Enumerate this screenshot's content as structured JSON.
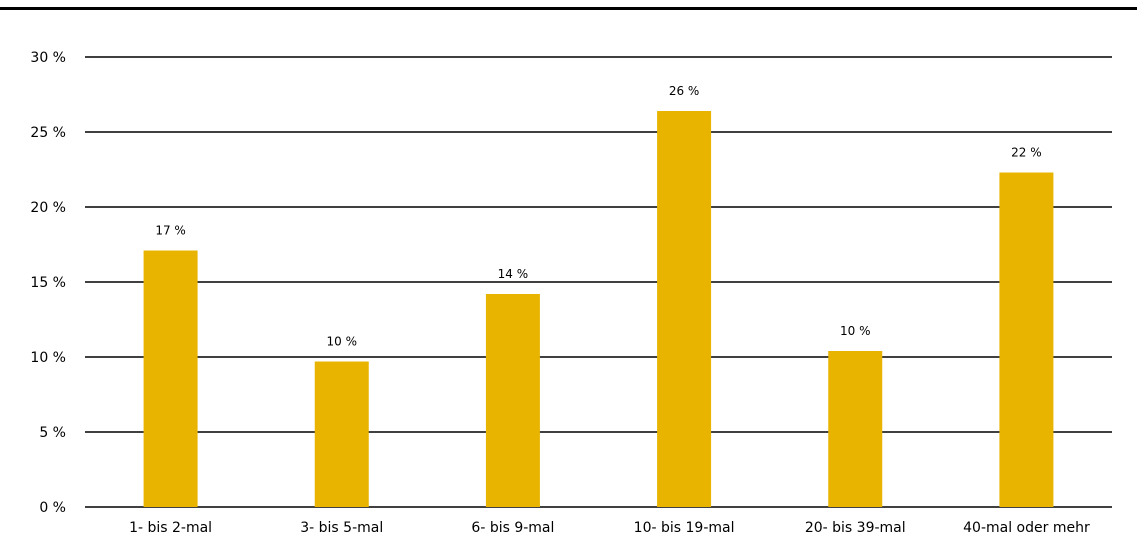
{
  "chart_data": {
    "type": "bar",
    "categories": [
      "1- bis 2-mal",
      "3- bis 5-mal",
      "6- bis 9-mal",
      "10- bis 19-mal",
      "20- bis 39-mal",
      "40-mal oder mehr"
    ],
    "values": [
      17.1,
      9.7,
      14.2,
      26.4,
      10.4,
      22.3
    ],
    "data_labels": [
      "17 %",
      "10 %",
      "14 %",
      "26 %",
      "10 %",
      "22 %"
    ],
    "y_ticks": [
      0,
      5,
      10,
      15,
      20,
      25,
      30
    ],
    "y_tick_labels": [
      "0 %",
      "5 %",
      "10 %",
      "15 %",
      "20 %",
      "25 %",
      "30 %"
    ],
    "ylim": [
      0,
      30
    ],
    "grid": true,
    "legend": "none",
    "title": "",
    "xlabel": "",
    "ylabel": ""
  },
  "colors": {
    "bar": "#E8B400",
    "grid": "#000000",
    "rule": "#000000"
  }
}
